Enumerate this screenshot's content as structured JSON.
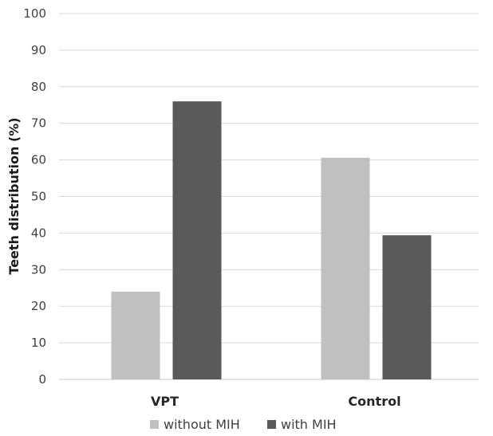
{
  "chart_data": {
    "type": "bar",
    "title": "",
    "xlabel": "",
    "ylabel": "Teeth distribution (%)",
    "ylim": [
      0,
      100
    ],
    "yticks": [
      0,
      10,
      20,
      30,
      40,
      50,
      60,
      70,
      80,
      90,
      100
    ],
    "categories": [
      "VPT",
      "Control"
    ],
    "series": [
      {
        "name": "without MIH",
        "color": "#bfc0c2",
        "values": [
          24,
          60.6
        ]
      },
      {
        "name": "with MIH",
        "color": "#5a5a5b",
        "values": [
          76,
          39.4
        ]
      }
    ],
    "grid": true,
    "legend_position": "bottom"
  }
}
